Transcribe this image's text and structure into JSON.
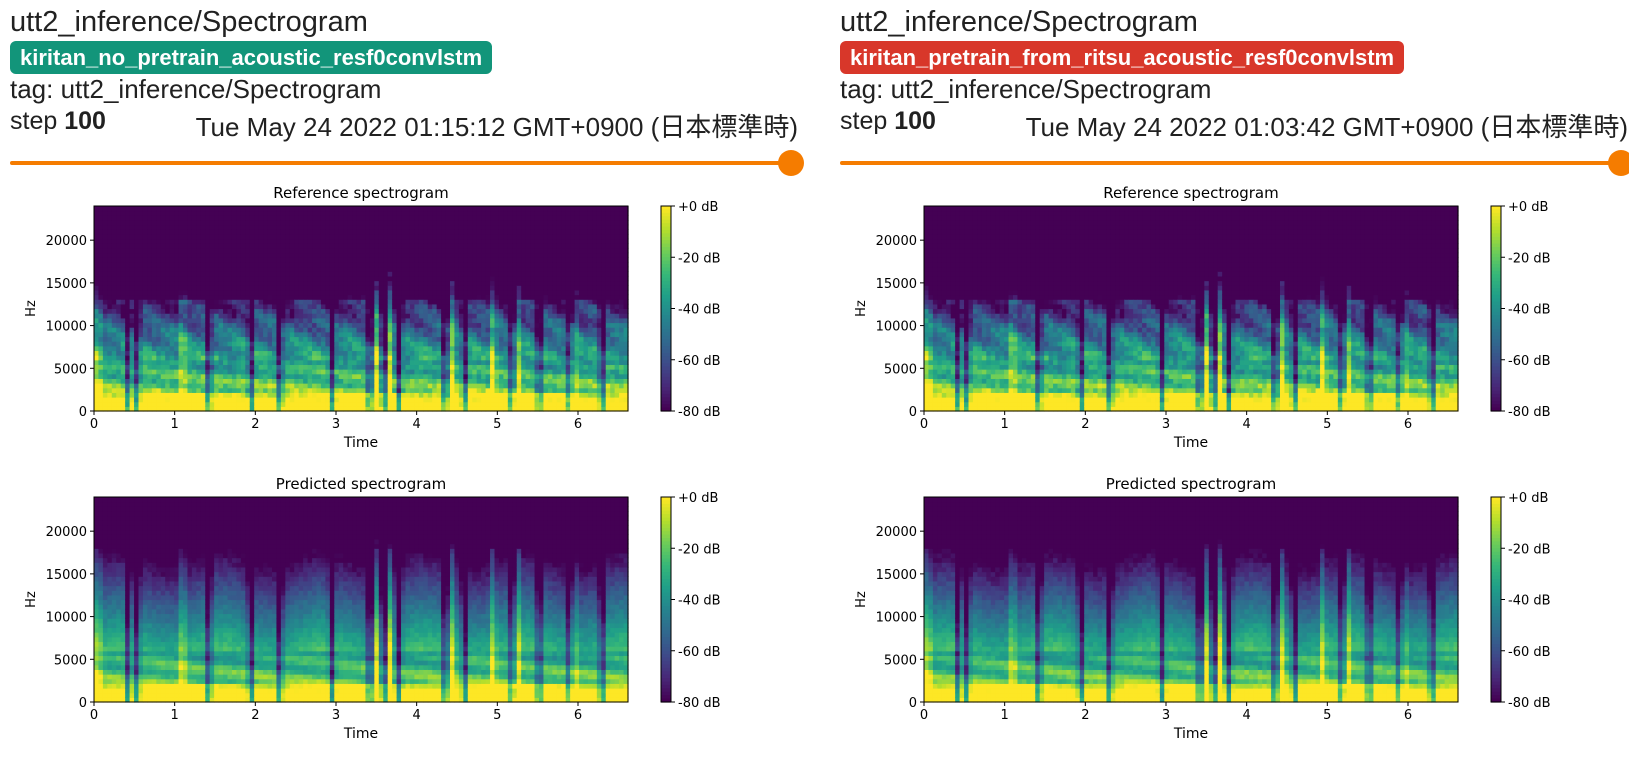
{
  "cards": [
    {
      "title": "utt2_inference/Spectrogram",
      "run": "kiritan_no_pretrain_acoustic_resf0convlstm",
      "run_color": "#12957a",
      "tag": "tag: utt2_inference/Spectrogram",
      "step_label": "step",
      "step_value": "100",
      "timestamp": "Tue May 24 2022 01:15:12 GMT+0900 (日本標準時)"
    },
    {
      "title": "utt2_inference/Spectrogram",
      "run": "kiritan_pretrain_from_ritsu_acoustic_resf0convlstm",
      "run_color": "#d8372a",
      "tag": "tag: utt2_inference/Spectrogram",
      "step_label": "step",
      "step_value": "100",
      "timestamp": "Tue May 24 2022 01:03:42 GMT+0900 (日本標準時)"
    }
  ],
  "slider": {
    "fraction": 1.0,
    "color": "#f57c00"
  },
  "plots": {
    "reference_title": "Reference spectrogram",
    "predicted_title": "Predicted spectrogram",
    "xlabel": "Time",
    "ylabel": "Hz",
    "xticks": [
      "0",
      "1",
      "2",
      "3",
      "4",
      "5",
      "6"
    ],
    "yticks": [
      "0",
      "5000",
      "10000",
      "15000",
      "20000"
    ],
    "cbar_ticks": [
      "+0 dB",
      "-20 dB",
      "-40 dB",
      "-60 dB",
      "-80 dB"
    ],
    "colormap": "viridis"
  }
}
